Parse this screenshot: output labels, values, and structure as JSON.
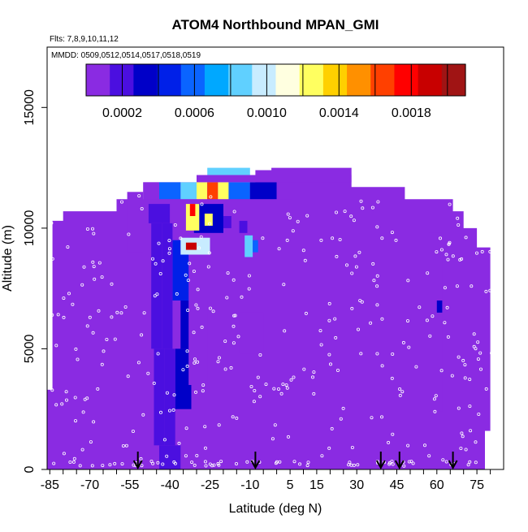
{
  "chart_data": {
    "type": "heatmap",
    "title": "ATOM4 Northbound MPAN_GMI",
    "flights_label": "Flts: 7,8,9,10,11,12",
    "dates_label": "MMDD: 0509,0512,0514,0517,0518,0519",
    "xlabel": "Latitude (deg N)",
    "ylabel": "Altitude (m)",
    "xlim": [
      -86,
      85
    ],
    "ylim": [
      0,
      17500
    ],
    "x_ticks": [
      -85,
      -70,
      -55,
      -40,
      -25,
      -10,
      5,
      15,
      30,
      45,
      60,
      75
    ],
    "y_ticks": [
      0,
      5000,
      10000,
      15000
    ],
    "colorbar": {
      "min": 0.0,
      "max": 0.0021,
      "tick_values": [
        0.0002,
        0.0006,
        0.001,
        0.0014,
        0.0018
      ],
      "tick_labels": [
        "0.0002",
        "0.0006",
        "0.0010",
        "0.0014",
        "0.0018"
      ],
      "separators": [
        0.0002,
        0.0004,
        0.0006,
        0.0008,
        0.001,
        0.0012,
        0.0014,
        0.0016,
        0.0018,
        0.002
      ],
      "colors": [
        "#8a2be2",
        "#4b0fe0",
        "#0000c8",
        "#0020e8",
        "#0a64ff",
        "#00a8ff",
        "#60d0ff",
        "#c8ecff",
        "#ffffe0",
        "#ffff60",
        "#ffd000",
        "#ff9000",
        "#ff4000",
        "#ff0000",
        "#c80000",
        "#a01414"
      ]
    },
    "background_value": 3e-05,
    "profile_arrow_latitudes": [
      -52,
      -8,
      39,
      46,
      66
    ],
    "curtain_outline": [
      [
        -86,
        0
      ],
      [
        -86,
        3300
      ],
      [
        -84,
        3300
      ],
      [
        -84,
        10300
      ],
      [
        -80,
        10300
      ],
      [
        -80,
        10700
      ],
      [
        -60,
        10700
      ],
      [
        -60,
        11200
      ],
      [
        -50,
        11200
      ],
      [
        -50,
        11900
      ],
      [
        -8,
        11900
      ],
      [
        -8,
        12400
      ],
      [
        -2,
        12400
      ],
      [
        -2,
        12500
      ],
      [
        28,
        12500
      ],
      [
        28,
        11700
      ],
      [
        48,
        11700
      ],
      [
        48,
        11200
      ],
      [
        66,
        11200
      ],
      [
        66,
        10700
      ],
      [
        70,
        10700
      ],
      [
        70,
        10000
      ],
      [
        75,
        10000
      ],
      [
        75,
        9200
      ],
      [
        80,
        9200
      ],
      [
        80,
        1600
      ],
      [
        78,
        1600
      ],
      [
        78,
        0
      ]
    ],
    "cells": [
      {
        "lat": [
          -48,
          -44
        ],
        "alt": [
          10200,
          11000
        ],
        "v": 0.00014
      },
      {
        "lat": [
          -44,
          -40
        ],
        "alt": [
          10200,
          11000
        ],
        "v": 0.00018
      },
      {
        "lat": [
          -47,
          -43
        ],
        "alt": [
          5000,
          10200
        ],
        "v": 0.00018
      },
      {
        "lat": [
          -43,
          -39
        ],
        "alt": [
          5000,
          10200
        ],
        "v": 0.00022
      },
      {
        "lat": [
          -46,
          -42
        ],
        "alt": [
          1000,
          5000
        ],
        "v": 0.00018
      },
      {
        "lat": [
          -42,
          -38
        ],
        "alt": [
          1000,
          5000
        ],
        "v": 0.00022
      },
      {
        "lat": [
          -44,
          -36
        ],
        "alt": [
          0,
          1000
        ],
        "v": 0.0002
      },
      {
        "lat": [
          -39,
          -33
        ],
        "alt": [
          7000,
          9500
        ],
        "v": 0.0004
      },
      {
        "lat": [
          -36,
          -30
        ],
        "alt": [
          5000,
          7000
        ],
        "v": 0.00035
      },
      {
        "lat": [
          -38,
          -32
        ],
        "alt": [
          2500,
          5000
        ],
        "v": 0.0003
      },
      {
        "lat": [
          -33,
          -26
        ],
        "alt": [
          3500,
          7000
        ],
        "v": 0.00012
      },
      {
        "lat": [
          -31,
          -20
        ],
        "alt": [
          9800,
          11000
        ],
        "v": 0.0003
      },
      {
        "lat": [
          -20,
          -17
        ],
        "alt": [
          10000,
          10500
        ],
        "v": 0.00014
      },
      {
        "lat": [
          -56,
          -50
        ],
        "alt": [
          9000,
          11500
        ],
        "v": 0.0001
      },
      {
        "lat": [
          -50,
          -44
        ],
        "alt": [
          11200,
          11900
        ],
        "v": 0.0001
      },
      {
        "lat": [
          -44,
          -36
        ],
        "alt": [
          11200,
          11900
        ],
        "v": 0.0006
      },
      {
        "lat": [
          -36,
          -30
        ],
        "alt": [
          11200,
          11900
        ],
        "v": 0.0008
      },
      {
        "lat": [
          -30,
          -26
        ],
        "alt": [
          11200,
          11900
        ],
        "v": 0.0013
      },
      {
        "lat": [
          -26,
          -22
        ],
        "alt": [
          11200,
          11900
        ],
        "v": 0.0016
      },
      {
        "lat": [
          -22,
          -18
        ],
        "alt": [
          11200,
          11900
        ],
        "v": 0.0012
      },
      {
        "lat": [
          -18,
          -10
        ],
        "alt": [
          11200,
          11900
        ],
        "v": 0.0006
      },
      {
        "lat": [
          -10,
          0
        ],
        "alt": [
          11200,
          11900
        ],
        "v": 0.0003
      },
      {
        "lat": [
          0,
          6
        ],
        "alt": [
          11200,
          11900
        ],
        "v": 0.00012
      },
      {
        "lat": [
          -30,
          28
        ],
        "alt": [
          11900,
          12200
        ],
        "v": 0.00012
      },
      {
        "lat": [
          -26,
          -10
        ],
        "alt": [
          12200,
          12500
        ],
        "v": 0.0009
      },
      {
        "lat": [
          -34,
          -29
        ],
        "alt": [
          9900,
          11000
        ],
        "v": 0.0012
      },
      {
        "lat": [
          -32.5,
          -30.5
        ],
        "alt": [
          10500,
          11000
        ],
        "v": 0.0018
      },
      {
        "lat": [
          -27,
          -24
        ],
        "alt": [
          10100,
          10600
        ],
        "v": 0.0013
      },
      {
        "lat": [
          -36,
          -25
        ],
        "alt": [
          8900,
          9600
        ],
        "v": 0.001
      },
      {
        "lat": [
          -34,
          -30
        ],
        "alt": [
          9100,
          9400
        ],
        "v": 0.0019
      },
      {
        "lat": [
          -12,
          -9
        ],
        "alt": [
          8800,
          9700
        ],
        "v": 0.0009
      },
      {
        "lat": [
          -9,
          -7
        ],
        "alt": [
          9000,
          9500
        ],
        "v": 0.0006
      },
      {
        "lat": [
          -14,
          -5
        ],
        "alt": [
          4800,
          6500
        ],
        "v": 9e-05
      },
      {
        "lat": [
          -14,
          -11
        ],
        "alt": [
          9800,
          10300
        ],
        "v": 0.00016
      },
      {
        "lat": [
          57,
          62
        ],
        "alt": [
          2400,
          9800
        ],
        "v": 0.0001
      },
      {
        "lat": [
          60,
          62
        ],
        "alt": [
          6500,
          7000
        ],
        "v": 0.0003
      }
    ]
  }
}
